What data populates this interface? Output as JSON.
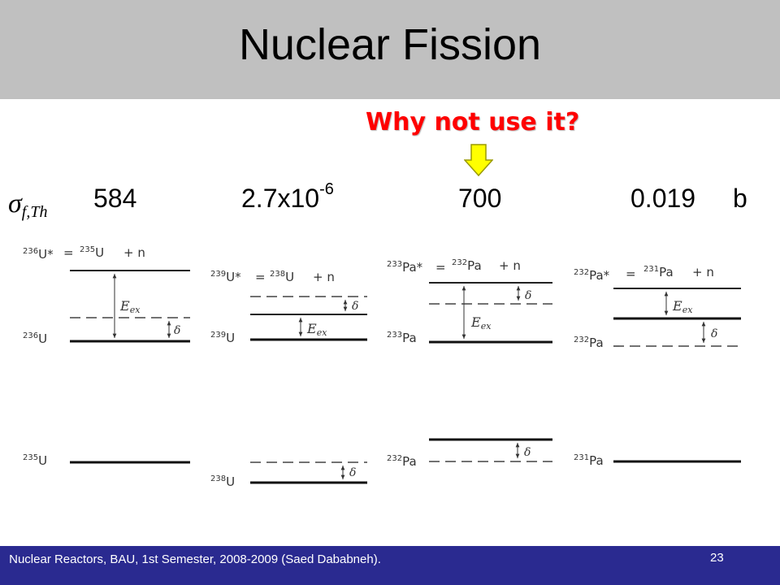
{
  "slide": {
    "title": "Nuclear Fission",
    "question": "Why not use it?",
    "sigma_label": {
      "symbol": "σ",
      "subscript": "f,Th"
    },
    "values": [
      {
        "mantissa": "584",
        "exponent": ""
      },
      {
        "mantissa": "2.7x10",
        "exponent": "-6"
      },
      {
        "mantissa": "700",
        "exponent": ""
      },
      {
        "mantissa": "0.019",
        "exponent": ""
      }
    ],
    "unit": "b",
    "footer": "Nuclear Reactors, BAU, 1st Semester, 2008-2009 (Saed Dababneh).",
    "page_number": "23"
  },
  "diagrams": [
    {
      "compound_mass": "236",
      "compound_elem": "U",
      "star": "*",
      "target_mass": "235",
      "target_elem": "U",
      "plus_n": "+ n",
      "ground_mass": "236",
      "ground_elem": "U",
      "eex": "E",
      "eex_sub": "ex",
      "delta": "δ",
      "bottom_mass": "235",
      "bottom_elem": "U"
    },
    {
      "compound_mass": "239",
      "compound_elem": "U",
      "star": "*",
      "target_mass": "238",
      "target_elem": "U",
      "plus_n": "+ n",
      "ground_mass": "239",
      "ground_elem": "U",
      "eex": "E",
      "eex_sub": "ex",
      "delta": "δ",
      "bottom_mass": "238",
      "bottom_elem": "U"
    },
    {
      "compound_mass": "233",
      "compound_elem": "Pa",
      "star": "*",
      "target_mass": "232",
      "target_elem": "Pa",
      "plus_n": "+ n",
      "ground_mass": "233",
      "ground_elem": "Pa",
      "eex": "E",
      "eex_sub": "ex",
      "delta": "δ",
      "bottom_mass": "232",
      "bottom_elem": "Pa"
    },
    {
      "compound_mass": "232",
      "compound_elem": "Pa",
      "star": "*",
      "target_mass": "231",
      "target_elem": "Pa",
      "plus_n": "+ n",
      "ground_mass": "232",
      "ground_elem": "Pa",
      "eex": "E",
      "eex_sub": "ex",
      "delta": "δ",
      "bottom_mass": "231",
      "bottom_elem": "Pa"
    }
  ],
  "colors": {
    "title_bar": "#c0c0c0",
    "question": "#ff0000",
    "arrow": "#ffff00",
    "footer": "#2a2a90"
  }
}
